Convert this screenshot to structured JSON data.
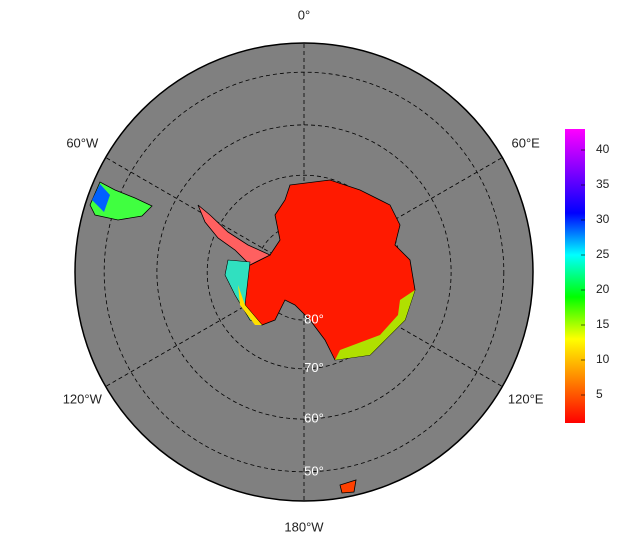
{
  "map": {
    "meridians": [
      {
        "value": 0,
        "label": "0°"
      },
      {
        "value": 60,
        "label": "60°E"
      },
      {
        "value": 120,
        "label": "120°E"
      },
      {
        "value": 180,
        "label": "180°W"
      },
      {
        "value": -120,
        "label": "120°W"
      },
      {
        "value": -60,
        "label": "60°W"
      }
    ],
    "parallels": [
      {
        "value": 80,
        "label": "80°"
      },
      {
        "value": 70,
        "label": "70°"
      },
      {
        "value": 60,
        "label": "60°"
      },
      {
        "value": 50,
        "label": "50°"
      }
    ]
  },
  "colorbar": {
    "range": [
      1,
      43
    ],
    "ticks": [
      5,
      10,
      15,
      20,
      25,
      30,
      35,
      40
    ],
    "colors": [
      "#ff0000",
      "#ff8000",
      "#ffff00",
      "#00ff00",
      "#00ffff",
      "#0000ff",
      "#8000ff",
      "#ff00ff"
    ]
  }
}
